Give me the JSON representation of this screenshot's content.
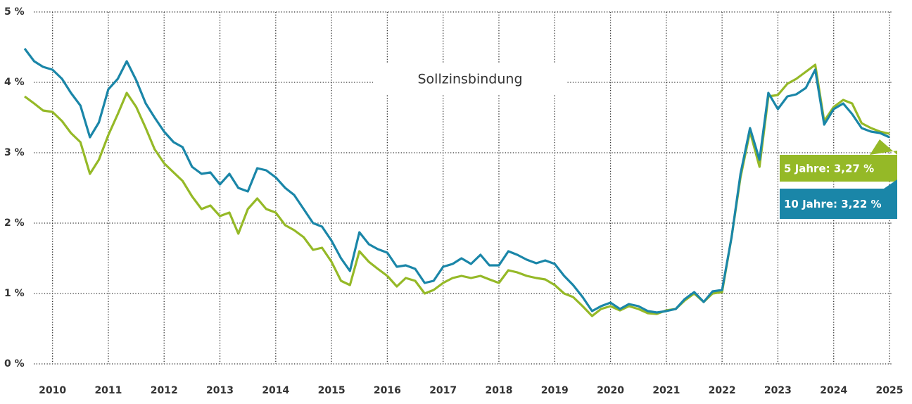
{
  "chart_data": {
    "type": "line",
    "title": "Sollzinsbindung",
    "x": [
      2009.5,
      2009.67,
      2009.83,
      2010,
      2010.17,
      2010.33,
      2010.5,
      2010.67,
      2010.83,
      2011,
      2011.17,
      2011.33,
      2011.5,
      2011.67,
      2011.83,
      2012,
      2012.17,
      2012.33,
      2012.5,
      2012.67,
      2012.83,
      2013,
      2013.17,
      2013.33,
      2013.5,
      2013.67,
      2013.83,
      2014,
      2014.17,
      2014.33,
      2014.5,
      2014.67,
      2014.83,
      2015,
      2015.17,
      2015.33,
      2015.5,
      2015.67,
      2015.83,
      2016,
      2016.17,
      2016.33,
      2016.5,
      2016.67,
      2016.83,
      2017,
      2017.17,
      2017.33,
      2017.5,
      2017.67,
      2017.83,
      2018,
      2018.17,
      2018.33,
      2018.5,
      2018.67,
      2018.83,
      2019,
      2019.17,
      2019.33,
      2019.5,
      2019.67,
      2019.83,
      2020,
      2020.17,
      2020.33,
      2020.5,
      2020.67,
      2020.83,
      2021,
      2021.17,
      2021.33,
      2021.5,
      2021.67,
      2021.83,
      2022,
      2022.17,
      2022.33,
      2022.5,
      2022.67,
      2022.83,
      2023,
      2023.17,
      2023.33,
      2023.5,
      2023.67,
      2023.83,
      2024,
      2024.17,
      2024.33,
      2024.5,
      2024.67,
      2024.83,
      2025
    ],
    "series": [
      {
        "name": "5 Jahre: 3,27 %",
        "color": "#95b927",
        "values": [
          3.8,
          3.7,
          3.6,
          3.58,
          3.45,
          3.28,
          3.15,
          2.7,
          2.9,
          3.25,
          3.55,
          3.85,
          3.65,
          3.35,
          3.05,
          2.85,
          2.72,
          2.6,
          2.38,
          2.2,
          2.25,
          2.1,
          2.15,
          1.85,
          2.2,
          2.35,
          2.2,
          2.15,
          1.97,
          1.9,
          1.8,
          1.62,
          1.65,
          1.45,
          1.18,
          1.12,
          1.6,
          1.45,
          1.35,
          1.25,
          1.1,
          1.22,
          1.18,
          1.0,
          1.05,
          1.15,
          1.22,
          1.25,
          1.22,
          1.25,
          1.2,
          1.15,
          1.33,
          1.3,
          1.25,
          1.22,
          1.2,
          1.12,
          1.0,
          0.95,
          0.82,
          0.68,
          0.78,
          0.82,
          0.76,
          0.82,
          0.78,
          0.72,
          0.71,
          0.76,
          0.78,
          0.9,
          1.0,
          0.88,
          1.0,
          1.02,
          1.8,
          2.65,
          3.3,
          2.8,
          3.8,
          3.82,
          3.98,
          4.05,
          4.15,
          4.25,
          3.45,
          3.65,
          3.75,
          3.7,
          3.42,
          3.35,
          3.3,
          3.27
        ]
      },
      {
        "name": "10 Jahre: 3,22 %",
        "color": "#1a86a8",
        "values": [
          4.48,
          4.3,
          4.22,
          4.18,
          4.05,
          3.85,
          3.67,
          3.22,
          3.43,
          3.9,
          4.05,
          4.3,
          4.03,
          3.7,
          3.5,
          3.3,
          3.15,
          3.08,
          2.8,
          2.7,
          2.72,
          2.55,
          2.7,
          2.5,
          2.45,
          2.78,
          2.75,
          2.65,
          2.5,
          2.4,
          2.2,
          2.0,
          1.95,
          1.75,
          1.5,
          1.32,
          1.87,
          1.7,
          1.63,
          1.58,
          1.38,
          1.4,
          1.35,
          1.15,
          1.18,
          1.38,
          1.42,
          1.5,
          1.42,
          1.55,
          1.4,
          1.4,
          1.6,
          1.55,
          1.48,
          1.43,
          1.47,
          1.42,
          1.25,
          1.12,
          0.95,
          0.75,
          0.82,
          0.87,
          0.78,
          0.85,
          0.82,
          0.75,
          0.73,
          0.75,
          0.78,
          0.92,
          1.02,
          0.88,
          1.03,
          1.05,
          1.8,
          2.7,
          3.35,
          2.9,
          3.85,
          3.62,
          3.8,
          3.83,
          3.92,
          4.18,
          3.4,
          3.62,
          3.7,
          3.55,
          3.35,
          3.3,
          3.28,
          3.22
        ]
      }
    ],
    "xlim": [
      2009.5,
      2025
    ],
    "xticks": [
      2010,
      2011,
      2012,
      2013,
      2014,
      2015,
      2016,
      2017,
      2018,
      2019,
      2020,
      2021,
      2022,
      2023,
      2024,
      2025
    ],
    "ylim": [
      0,
      5
    ],
    "yticks": [
      {
        "value": 0,
        "label": "0 %"
      },
      {
        "value": 1,
        "label": "1 %"
      },
      {
        "value": 2,
        "label": "2 %"
      },
      {
        "value": 3,
        "label": "3 %"
      },
      {
        "value": 4,
        "label": "4 %"
      },
      {
        "value": 5,
        "label": "5 %"
      }
    ],
    "grid": true
  }
}
